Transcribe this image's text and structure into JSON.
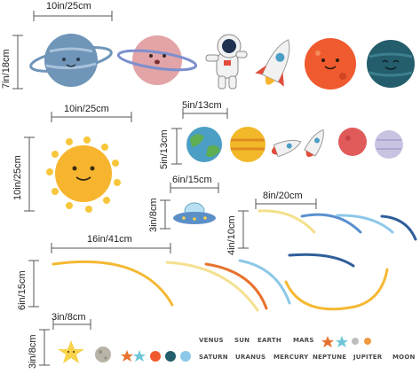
{
  "dimensions": {
    "top_width": "10in/25cm",
    "top_height": "7in/18cm",
    "sun_width": "10in/25cm",
    "sun_height": "10in/25cm",
    "small_width": "5in/13cm",
    "small_height": "5in/13cm",
    "ufo_width": "6in/15cm",
    "ufo_height": "3in/8cm",
    "rings_right_width": "8in/20cm",
    "rings_right_height": "4in/10cm",
    "rings_left_width": "16in/41cm",
    "rings_left_height": "6in/15cm",
    "star_width": "3in/8cm",
    "star_height": "3in/8cm"
  },
  "words_row1": [
    "VENUS",
    "SUN",
    "EARTH",
    "MARS"
  ],
  "words_row2": [
    "SATURN",
    "URANUS",
    "MERCURY",
    "NEPTUNE",
    "JUPITER",
    "MOON"
  ],
  "colors": {
    "blue_planet": "#6f95b8",
    "pink_planet": "#e2a4a6",
    "orange_planet": "#ef5a2f",
    "teal_planet": "#245d6b",
    "sun": "#f7b52f",
    "earth": "#4b9ec4",
    "saturn_small": "#f2b829",
    "red_small": "#e05a5a",
    "lavender_small": "#c9c3e2"
  },
  "icons": [
    "blue-planet-ring-icon",
    "pink-planet-ring-icon",
    "astronaut-icon",
    "rocket-icon",
    "orange-planet-icon",
    "teal-planet-icon",
    "sun-icon",
    "earth-icon",
    "saturn-icon",
    "small-rocket-icon",
    "ufo-icon",
    "star-icon",
    "moon-icon"
  ]
}
